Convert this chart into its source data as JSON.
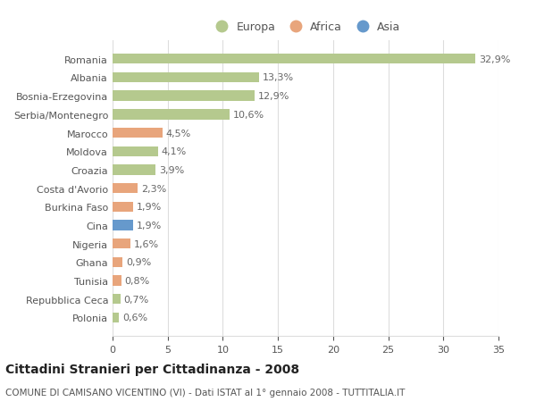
{
  "countries": [
    "Polonia",
    "Repubblica Ceca",
    "Tunisia",
    "Ghana",
    "Nigeria",
    "Cina",
    "Burkina Faso",
    "Costa d'Avorio",
    "Croazia",
    "Moldova",
    "Marocco",
    "Serbia/Montenegro",
    "Bosnia-Erzegovina",
    "Albania",
    "Romania"
  ],
  "values": [
    0.6,
    0.7,
    0.8,
    0.9,
    1.6,
    1.9,
    1.9,
    2.3,
    3.9,
    4.1,
    4.5,
    10.6,
    12.9,
    13.3,
    32.9
  ],
  "continents": [
    "Europa",
    "Europa",
    "Africa",
    "Africa",
    "Africa",
    "Asia",
    "Africa",
    "Africa",
    "Europa",
    "Europa",
    "Africa",
    "Europa",
    "Europa",
    "Europa",
    "Europa"
  ],
  "colors": {
    "Europa": "#b5c98e",
    "Africa": "#e8a57c",
    "Asia": "#6699cc"
  },
  "title": "Cittadini Stranieri per Cittadinanza - 2008",
  "subtitle": "COMUNE DI CAMISANO VICENTINO (VI) - Dati ISTAT al 1° gennaio 2008 - TUTTITALIA.IT",
  "xlim": [
    0,
    35
  ],
  "xticks": [
    0,
    5,
    10,
    15,
    20,
    25,
    30,
    35
  ],
  "background_color": "#ffffff",
  "grid_color": "#dddddd",
  "bar_height": 0.55,
  "label_fontsize": 8,
  "tick_fontsize": 8,
  "title_fontsize": 10,
  "subtitle_fontsize": 7.5
}
